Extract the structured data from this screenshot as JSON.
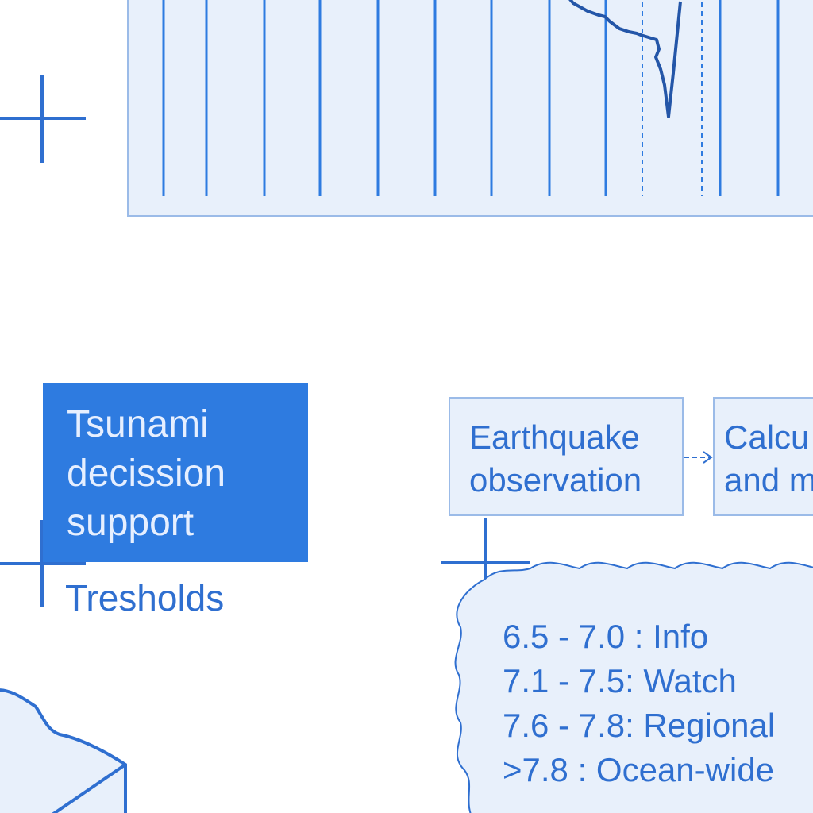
{
  "decision_box": {
    "lines": [
      "Tsunami",
      "decission",
      "support"
    ]
  },
  "thresholds": {
    "label": "Tresholds"
  },
  "flow": {
    "earthquake": [
      "Earthquake",
      "observation"
    ],
    "calculation": [
      "Calcu",
      "and m"
    ]
  },
  "levels": [
    "6.5 - 7.0 : Info",
    "7.1 - 7.5: Watch",
    "7.6 - 7.8: Regional",
    ">7.8 : Ocean-wide"
  ],
  "colors": {
    "accent": "#2e7be0",
    "panel": "#e8f0fb",
    "line": "#2f6fd0"
  },
  "icons": [
    "crosshair-icon",
    "dashed-arrow-icon",
    "cloud-shape"
  ]
}
